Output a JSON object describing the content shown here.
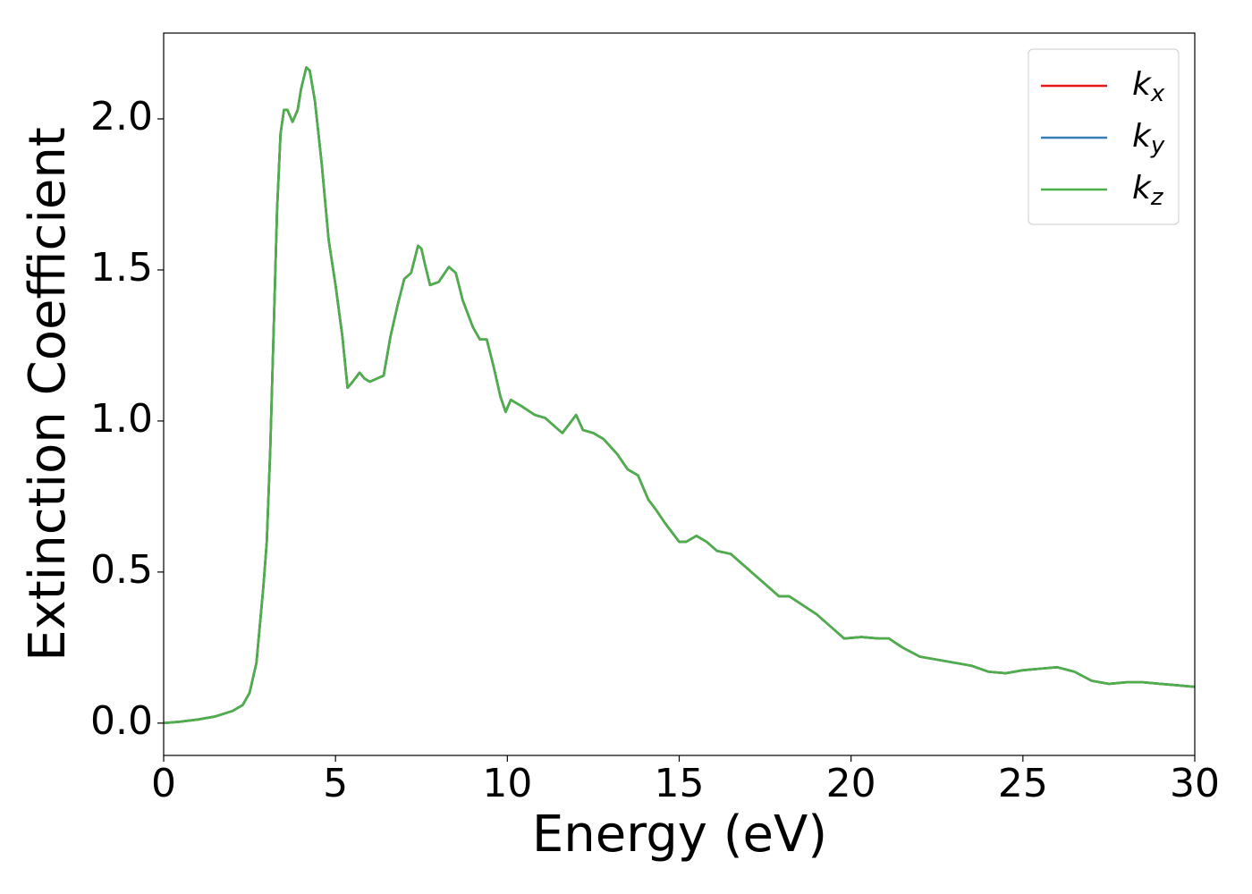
{
  "chart_data": {
    "type": "line",
    "xlabel": "Energy (eV)",
    "ylabel": "Extinction Coefficient",
    "x": [
      0,
      0.5,
      1.0,
      1.5,
      2.0,
      2.3,
      2.5,
      2.7,
      2.9,
      3.0,
      3.1,
      3.2,
      3.3,
      3.4,
      3.5,
      3.6,
      3.75,
      3.9,
      4.0,
      4.15,
      4.25,
      4.4,
      4.6,
      4.8,
      5.0,
      5.2,
      5.35,
      5.5,
      5.7,
      5.85,
      6.0,
      6.2,
      6.4,
      6.6,
      6.8,
      7.0,
      7.2,
      7.4,
      7.5,
      7.6,
      7.75,
      8.0,
      8.3,
      8.5,
      8.7,
      9.0,
      9.2,
      9.4,
      9.6,
      9.8,
      9.95,
      10.1,
      10.4,
      10.8,
      11.1,
      11.3,
      11.6,
      11.8,
      12.0,
      12.2,
      12.5,
      12.8,
      13.2,
      13.5,
      13.8,
      14.1,
      14.3,
      14.6,
      15.0,
      15.2,
      15.5,
      15.8,
      16.1,
      16.5,
      17.0,
      17.5,
      17.9,
      18.2,
      18.6,
      19.0,
      19.4,
      19.8,
      20.3,
      20.8,
      21.1,
      21.5,
      22.0,
      22.5,
      23.0,
      23.5,
      24.0,
      24.5,
      25.0,
      25.5,
      26.0,
      26.5,
      27.0,
      27.5,
      28.0,
      28.5,
      29.0,
      29.5,
      30.0
    ],
    "series": [
      {
        "name": "kx",
        "color": "#e41a1c",
        "values": [
          0,
          0.005,
          0.012,
          0.022,
          0.04,
          0.06,
          0.1,
          0.2,
          0.45,
          0.6,
          0.9,
          1.3,
          1.7,
          1.95,
          2.03,
          2.03,
          1.99,
          2.03,
          2.1,
          2.17,
          2.16,
          2.06,
          1.85,
          1.6,
          1.45,
          1.28,
          1.11,
          1.13,
          1.16,
          1.14,
          1.13,
          1.14,
          1.15,
          1.28,
          1.38,
          1.47,
          1.49,
          1.58,
          1.57,
          1.52,
          1.45,
          1.46,
          1.51,
          1.49,
          1.4,
          1.31,
          1.27,
          1.27,
          1.18,
          1.08,
          1.03,
          1.07,
          1.05,
          1.02,
          1.01,
          0.99,
          0.96,
          0.99,
          1.02,
          0.97,
          0.96,
          0.94,
          0.89,
          0.84,
          0.82,
          0.74,
          0.71,
          0.66,
          0.6,
          0.6,
          0.62,
          0.6,
          0.57,
          0.56,
          0.51,
          0.46,
          0.42,
          0.42,
          0.39,
          0.36,
          0.32,
          0.28,
          0.285,
          0.28,
          0.28,
          0.25,
          0.22,
          0.21,
          0.2,
          0.19,
          0.17,
          0.165,
          0.175,
          0.18,
          0.185,
          0.17,
          0.14,
          0.13,
          0.135,
          0.135,
          0.13,
          0.125,
          0.12
        ]
      },
      {
        "name": "ky",
        "color": "#377eb8",
        "values": [
          0,
          0.005,
          0.012,
          0.022,
          0.04,
          0.06,
          0.1,
          0.2,
          0.45,
          0.6,
          0.9,
          1.3,
          1.7,
          1.95,
          2.03,
          2.03,
          1.99,
          2.03,
          2.1,
          2.17,
          2.16,
          2.06,
          1.85,
          1.6,
          1.45,
          1.28,
          1.11,
          1.13,
          1.16,
          1.14,
          1.13,
          1.14,
          1.15,
          1.28,
          1.38,
          1.47,
          1.49,
          1.58,
          1.57,
          1.52,
          1.45,
          1.46,
          1.51,
          1.49,
          1.4,
          1.31,
          1.27,
          1.27,
          1.18,
          1.08,
          1.03,
          1.07,
          1.05,
          1.02,
          1.01,
          0.99,
          0.96,
          0.99,
          1.02,
          0.97,
          0.96,
          0.94,
          0.89,
          0.84,
          0.82,
          0.74,
          0.71,
          0.66,
          0.6,
          0.6,
          0.62,
          0.6,
          0.57,
          0.56,
          0.51,
          0.46,
          0.42,
          0.42,
          0.39,
          0.36,
          0.32,
          0.28,
          0.285,
          0.28,
          0.28,
          0.25,
          0.22,
          0.21,
          0.2,
          0.19,
          0.17,
          0.165,
          0.175,
          0.18,
          0.185,
          0.17,
          0.14,
          0.13,
          0.135,
          0.135,
          0.13,
          0.125,
          0.12
        ]
      },
      {
        "name": "kz",
        "color": "#4daf4a",
        "values": [
          0,
          0.005,
          0.012,
          0.022,
          0.04,
          0.06,
          0.1,
          0.2,
          0.45,
          0.6,
          0.9,
          1.3,
          1.7,
          1.95,
          2.03,
          2.03,
          1.99,
          2.03,
          2.1,
          2.17,
          2.16,
          2.06,
          1.85,
          1.6,
          1.45,
          1.28,
          1.11,
          1.13,
          1.16,
          1.14,
          1.13,
          1.14,
          1.15,
          1.28,
          1.38,
          1.47,
          1.49,
          1.58,
          1.57,
          1.52,
          1.45,
          1.46,
          1.51,
          1.49,
          1.4,
          1.31,
          1.27,
          1.27,
          1.18,
          1.08,
          1.03,
          1.07,
          1.05,
          1.02,
          1.01,
          0.99,
          0.96,
          0.99,
          1.02,
          0.97,
          0.96,
          0.94,
          0.89,
          0.84,
          0.82,
          0.74,
          0.71,
          0.66,
          0.6,
          0.6,
          0.62,
          0.6,
          0.57,
          0.56,
          0.51,
          0.46,
          0.42,
          0.42,
          0.39,
          0.36,
          0.32,
          0.28,
          0.285,
          0.28,
          0.28,
          0.25,
          0.22,
          0.21,
          0.2,
          0.19,
          0.17,
          0.165,
          0.175,
          0.18,
          0.185,
          0.17,
          0.14,
          0.13,
          0.135,
          0.135,
          0.13,
          0.125,
          0.12
        ]
      }
    ],
    "xlim": [
      0,
      30
    ],
    "xticks": [
      0,
      5,
      10,
      15,
      20,
      25,
      30
    ],
    "ylim": [
      -0.107,
      2.284
    ],
    "yticks": [
      {
        "value": 0,
        "label": "0.0"
      },
      0.5,
      {
        "value": 1,
        "label": "1.0"
      },
      1.5,
      {
        "value": 2,
        "label": "2.0"
      }
    ],
    "grid": false,
    "legend": "upper right"
  }
}
